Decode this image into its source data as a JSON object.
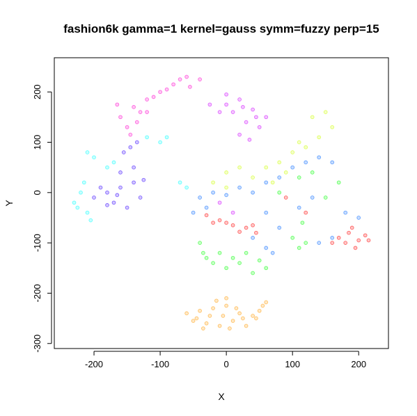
{
  "chart_data": {
    "type": "scatter",
    "title": "fashion6k gamma=1 kernel=gauss symm=fuzzy perp=15",
    "xlabel": "X",
    "ylabel": "Y",
    "xlim": [
      -260,
      245
    ],
    "ylim": [
      -310,
      268
    ],
    "xticks": [
      -200,
      -100,
      0,
      100,
      200
    ],
    "yticks": [
      -300,
      -200,
      -100,
      0,
      100,
      200
    ],
    "xtick_labels": [
      "-200",
      "-100",
      "0",
      "100",
      "200"
    ],
    "ytick_labels": [
      "-300",
      "-200",
      "-100",
      "0",
      "100",
      "200"
    ],
    "grid": false,
    "legend": "none",
    "clusters": [
      {
        "color": "#FF9900",
        "points": [
          [
            -60,
            -240
          ],
          [
            -40,
            -235
          ],
          [
            -20,
            -230
          ],
          [
            0,
            -225
          ],
          [
            20,
            -240
          ],
          [
            40,
            -245
          ],
          [
            55,
            -225
          ],
          [
            -50,
            -255
          ],
          [
            -30,
            -260
          ],
          [
            -10,
            -265
          ],
          [
            10,
            -255
          ],
          [
            30,
            -265
          ],
          [
            45,
            -250
          ],
          [
            -5,
            -245
          ],
          [
            15,
            -230
          ],
          [
            -25,
            -245
          ],
          [
            -45,
            -250
          ],
          [
            0,
            -210
          ],
          [
            -15,
            -215
          ],
          [
            25,
            -250
          ],
          [
            50,
            -235
          ],
          [
            60,
            -218
          ],
          [
            -35,
            -270
          ],
          [
            5,
            -270
          ]
        ]
      },
      {
        "color": "#FF0000",
        "points": [
          [
            -30,
            -45
          ],
          [
            -10,
            -55
          ],
          [
            10,
            -65
          ],
          [
            30,
            -70
          ],
          [
            45,
            -80
          ],
          [
            0,
            -60
          ],
          [
            -20,
            -60
          ],
          [
            20,
            -78
          ],
          [
            40,
            -65
          ],
          [
            170,
            -90
          ],
          [
            185,
            -80
          ],
          [
            200,
            -95
          ],
          [
            195,
            -110
          ],
          [
            180,
            -100
          ],
          [
            210,
            -85
          ],
          [
            160,
            -100
          ],
          [
            190,
            -70
          ],
          [
            215,
            -95
          ],
          [
            90,
            -10
          ],
          [
            120,
            -40
          ]
        ]
      },
      {
        "color": "#FF00CC",
        "points": [
          [
            -160,
            150
          ],
          [
            -140,
            170
          ],
          [
            -120,
            185
          ],
          [
            -100,
            200
          ],
          [
            -80,
            215
          ],
          [
            -60,
            230
          ],
          [
            -40,
            225
          ],
          [
            -150,
            130
          ],
          [
            -130,
            160
          ],
          [
            -110,
            190
          ],
          [
            -90,
            205
          ],
          [
            -70,
            225
          ],
          [
            -145,
            115
          ],
          [
            -165,
            175
          ],
          [
            -55,
            210
          ],
          [
            -135,
            140
          ],
          [
            -120,
            160
          ]
        ]
      },
      {
        "color": "#CC00FF",
        "points": [
          [
            -25,
            175
          ],
          [
            0,
            195
          ],
          [
            20,
            185
          ],
          [
            40,
            165
          ],
          [
            30,
            140
          ],
          [
            50,
            130
          ],
          [
            20,
            115
          ],
          [
            35,
            105
          ],
          [
            10,
            160
          ],
          [
            45,
            150
          ],
          [
            0,
            175
          ],
          [
            -10,
            160
          ],
          [
            25,
            170
          ],
          [
            60,
            150
          ],
          [
            -10,
            -20
          ],
          [
            10,
            -40
          ]
        ]
      },
      {
        "color": "#3300FF",
        "points": [
          [
            -200,
            -10
          ],
          [
            -180,
            0
          ],
          [
            -160,
            10
          ],
          [
            -140,
            20
          ],
          [
            -130,
            -10
          ],
          [
            -170,
            -20
          ],
          [
            -150,
            -30
          ],
          [
            -140,
            50
          ],
          [
            -160,
            40
          ],
          [
            -180,
            -25
          ],
          [
            -125,
            25
          ],
          [
            -155,
            80
          ],
          [
            -145,
            90
          ],
          [
            -135,
            100
          ],
          [
            -190,
            10
          ],
          [
            -165,
            -5
          ]
        ]
      },
      {
        "color": "#00FFFF",
        "points": [
          [
            -230,
            -20
          ],
          [
            -220,
            0
          ],
          [
            -210,
            -40
          ],
          [
            -200,
            70
          ],
          [
            -210,
            80
          ],
          [
            -180,
            50
          ],
          [
            -170,
            60
          ],
          [
            -120,
            110
          ],
          [
            -100,
            100
          ],
          [
            -90,
            110
          ],
          [
            -70,
            20
          ],
          [
            -60,
            10
          ],
          [
            -225,
            -30
          ],
          [
            -205,
            -55
          ],
          [
            -215,
            20
          ]
        ]
      },
      {
        "color": "#00FF00",
        "points": [
          [
            -40,
            -100
          ],
          [
            -30,
            -130
          ],
          [
            -20,
            -140
          ],
          [
            0,
            -150
          ],
          [
            20,
            -140
          ],
          [
            40,
            -160
          ],
          [
            60,
            -150
          ],
          [
            10,
            -130
          ],
          [
            -10,
            -120
          ],
          [
            30,
            -120
          ],
          [
            50,
            -135
          ],
          [
            -35,
            -120
          ],
          [
            100,
            -90
          ],
          [
            110,
            -110
          ],
          [
            120,
            -100
          ],
          [
            170,
            20
          ],
          [
            110,
            30
          ],
          [
            130,
            40
          ],
          [
            150,
            -10
          ],
          [
            80,
            0
          ],
          [
            115,
            -60
          ]
        ]
      },
      {
        "color": "#CCFF00",
        "points": [
          [
            -20,
            20
          ],
          [
            0,
            40
          ],
          [
            20,
            50
          ],
          [
            40,
            30
          ],
          [
            60,
            50
          ],
          [
            80,
            60
          ],
          [
            100,
            80
          ],
          [
            120,
            90
          ],
          [
            140,
            110
          ],
          [
            160,
            130
          ],
          [
            130,
            150
          ],
          [
            150,
            160
          ],
          [
            90,
            40
          ],
          [
            70,
            20
          ],
          [
            110,
            100
          ],
          [
            0,
            10
          ]
        ]
      },
      {
        "color": "#0066FF",
        "points": [
          [
            -40,
            -10
          ],
          [
            -20,
            0
          ],
          [
            0,
            -5
          ],
          [
            20,
            10
          ],
          [
            40,
            0
          ],
          [
            60,
            20
          ],
          [
            80,
            30
          ],
          [
            100,
            50
          ],
          [
            120,
            60
          ],
          [
            140,
            70
          ],
          [
            160,
            60
          ],
          [
            -50,
            -40
          ],
          [
            -30,
            -30
          ],
          [
            60,
            -40
          ],
          [
            40,
            -90
          ],
          [
            60,
            -110
          ],
          [
            70,
            -120
          ],
          [
            140,
            -100
          ],
          [
            160,
            -90
          ],
          [
            180,
            -40
          ],
          [
            200,
            -50
          ],
          [
            110,
            -30
          ],
          [
            130,
            -10
          ],
          [
            80,
            -70
          ]
        ]
      }
    ]
  }
}
